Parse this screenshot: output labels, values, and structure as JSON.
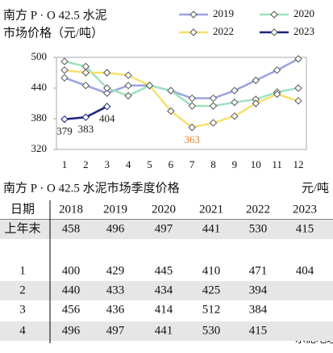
{
  "chart_data": {
    "type": "line",
    "title": "南方 P · O 42.5 水泥",
    "subtitle": "市场价格（元/吨）",
    "categories": [
      "1",
      "2",
      "3",
      "4",
      "5",
      "6",
      "7",
      "8",
      "9",
      "10",
      "11",
      "12"
    ],
    "ylim": [
      320,
      500
    ],
    "yticks": [
      320,
      380,
      440,
      500
    ],
    "legend": "top-right",
    "series": [
      {
        "name": "2019",
        "color": "#9aa3e0",
        "values": [
          460,
          445,
          430,
          445,
          445,
          435,
          420,
          420,
          435,
          455,
          475,
          497
        ]
      },
      {
        "name": "2020",
        "color": "#9fe0bd",
        "values": [
          492,
          482,
          440,
          425,
          445,
          435,
          405,
          405,
          412,
          418,
          432,
          440
        ]
      },
      {
        "name": "2022",
        "color": "#f6df6e",
        "values": [
          475,
          470,
          470,
          465,
          445,
          395,
          363,
          372,
          385,
          410,
          428,
          415
        ],
        "label_points": [
          6
        ],
        "label_color": "#e8802a"
      },
      {
        "name": "2023",
        "color": "#1a237e",
        "values": [
          379,
          383,
          404,
          null,
          null,
          null,
          null,
          null,
          null,
          null,
          null,
          null
        ],
        "label_points": [
          0,
          1,
          2
        ],
        "label_color": "#222222"
      }
    ]
  },
  "table": {
    "title": "南方 P · O 42.5 水泥市场季度价格",
    "unit": "元/吨",
    "header": [
      "日期",
      "2018",
      "2019",
      "2020",
      "2021",
      "2022",
      "2023"
    ],
    "rows": [
      [
        "上年末",
        "458",
        "496",
        "497",
        "441",
        "530",
        "415"
      ],
      [
        "1",
        "400",
        "429",
        "445",
        "410",
        "471",
        "404"
      ],
      [
        "2",
        "440",
        "433",
        "434",
        "425",
        "394"
      ],
      [
        "3",
        "456",
        "436",
        "414",
        "512",
        "384"
      ],
      [
        "4",
        "496",
        "497",
        "441",
        "530",
        "415"
      ]
    ]
  },
  "watermark": "水泥地理"
}
